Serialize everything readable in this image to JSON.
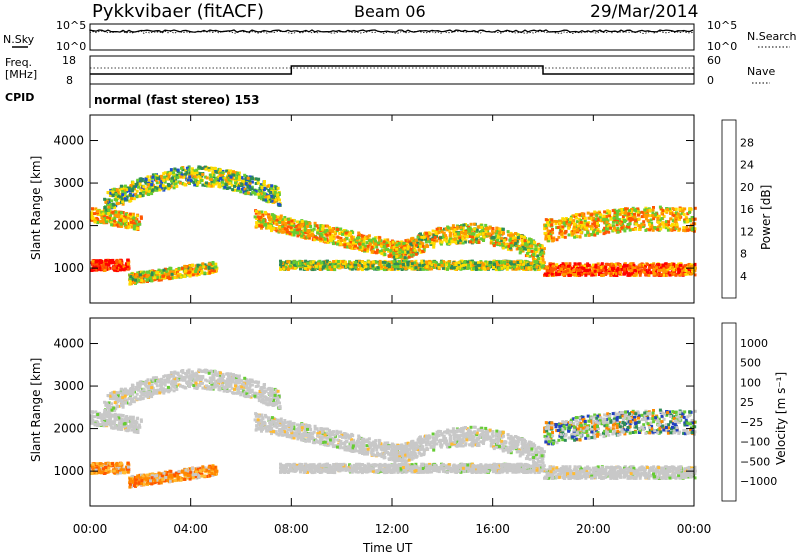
{
  "header": {
    "station": "Pykkvibaer (fitACF)",
    "beam": "Beam 06",
    "date": "29/Mar/2014"
  },
  "noise_panel": {
    "left_label": "N.Sky",
    "right_label": "N.Search",
    "left_ticks": [
      "10^5",
      "10^0"
    ],
    "right_ticks": [
      "10^5",
      "10^0"
    ]
  },
  "freq_panel": {
    "left_label_1": "Freq.",
    "left_label_2": "[MHz]",
    "right_label": "Nave",
    "left_ticks": [
      "18",
      "8"
    ],
    "right_ticks": [
      "60",
      "0"
    ]
  },
  "cpid": {
    "label": "CPID",
    "text": "normal (fast stereo) 153"
  },
  "colors": {
    "power_scale": [
      "#0000ff",
      "#1a4fd0",
      "#2e8b57",
      "#66cc33",
      "#ffdd00",
      "#ff9900",
      "#ff5500",
      "#ff0000"
    ],
    "velocity_scale": [
      "#ff0000",
      "#ff5500",
      "#ff8800",
      "#ffbb33",
      "#c8c8c8",
      "#66cc33",
      "#2e8b57",
      "#2040c0"
    ],
    "ground_scatter": "#c0c0c0"
  },
  "chart_data": [
    {
      "type": "heatmap",
      "panel": "power",
      "ylabel": "Slant Range [km]",
      "yticks": [
        "4000",
        "3000",
        "2000",
        "1000"
      ],
      "ylim": [
        180,
        4600
      ],
      "colorbar_label": "Power [dB]",
      "colorbar_ticks": [
        "28",
        "24",
        "20",
        "16",
        "12",
        "8",
        "4"
      ],
      "colorbar_range": [
        0,
        32
      ]
    },
    {
      "type": "heatmap",
      "panel": "velocity",
      "ylabel": "Slant Range [km]",
      "yticks": [
        "4000",
        "3000",
        "2000",
        "1000"
      ],
      "ylim": [
        180,
        4600
      ],
      "colorbar_label": "Velocity [m s⁻¹]",
      "colorbar_ticks": [
        "1000",
        "500",
        "100",
        "25",
        "−25",
        "−100",
        "−500",
        "−1000"
      ]
    },
    {
      "type": "line",
      "panel": "time_axis",
      "xlabel": "Time UT",
      "xticks": [
        "00:00",
        "04:00",
        "08:00",
        "12:00",
        "16:00",
        "20:00",
        "00:00"
      ],
      "xlim_hours": [
        0,
        24
      ],
      "frequency_steps": [
        {
          "from_hour": 0,
          "to_hour": 8,
          "level": "low"
        },
        {
          "from_hour": 8,
          "to_hour": 18,
          "level": "high"
        },
        {
          "from_hour": 18,
          "to_hour": 24,
          "level": "low"
        }
      ]
    }
  ]
}
